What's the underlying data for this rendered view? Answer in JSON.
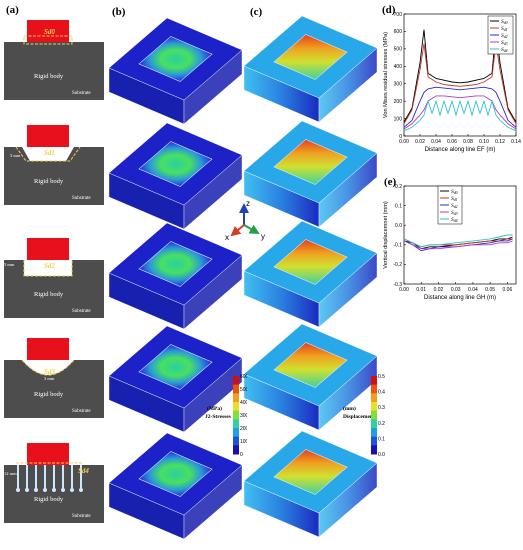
{
  "figure": {
    "panel_labels": {
      "a": "(a)",
      "b": "(b)",
      "c": "(c)",
      "d": "(d)",
      "e": "(e)"
    },
    "schematic": {
      "rigid_body": "Rigid body",
      "substrate": "Substrate",
      "bond_labels": [
        "Sd0",
        "Sd1",
        "Sd2",
        "Sd3",
        "Sd4"
      ],
      "dims": [
        "3 mm",
        "3 mm",
        "3 mm",
        "12 mm"
      ]
    },
    "colorbar_stress": {
      "unit": "(MPa)",
      "name": "J2-Stresses",
      "ticks": [
        "600",
        "500",
        "400",
        "300",
        "200",
        "100",
        "0"
      ]
    },
    "colorbar_disp": {
      "unit": "(mm)",
      "name": "Displacement",
      "ticks": [
        "0.5",
        "0.4",
        "0.3",
        "0.2",
        "0.1",
        "0.0"
      ]
    },
    "axes_triad": {
      "x": "x",
      "y": "y",
      "z": "z"
    },
    "colors": {
      "solid_red": "#e8101a",
      "steel": "#4d4d4d",
      "bond_line": "#f0d050",
      "fe_blue": "#1a1fbf",
      "Sd0": "#000000",
      "Sd1": "#c0392b",
      "Sd2": "#2929c8",
      "Sd3": "#b637c7",
      "Sd4": "#2ec4c4"
    }
  },
  "chart_data": [
    {
      "type": "line",
      "xlabel": "Distance along line EF (m)",
      "ylabel": "Von Mises residual stresses (MPa)",
      "xlim": [
        0.0,
        0.14
      ],
      "ylim": [
        0,
        700
      ],
      "xticks": [
        "0.00",
        "0.02",
        "0.04",
        "0.06",
        "0.08",
        "0.10",
        "0.12",
        "0.14"
      ],
      "yticks": [
        "0",
        "100",
        "200",
        "300",
        "400",
        "500",
        "600",
        "700"
      ],
      "legend_position": "top-right",
      "series": [
        {
          "name": "Sd0",
          "x": [
            0.0,
            0.01,
            0.02,
            0.025,
            0.03,
            0.04,
            0.05,
            0.06,
            0.07,
            0.08,
            0.09,
            0.1,
            0.11,
            0.115,
            0.12,
            0.13,
            0.14
          ],
          "values": [
            80,
            160,
            420,
            610,
            360,
            330,
            320,
            310,
            305,
            310,
            320,
            330,
            360,
            610,
            420,
            160,
            80
          ]
        },
        {
          "name": "Sd1",
          "x": [
            0.0,
            0.01,
            0.02,
            0.025,
            0.03,
            0.04,
            0.05,
            0.06,
            0.07,
            0.08,
            0.09,
            0.1,
            0.11,
            0.115,
            0.12,
            0.13,
            0.14
          ],
          "values": [
            70,
            150,
            380,
            530,
            340,
            310,
            295,
            290,
            285,
            290,
            295,
            310,
            340,
            530,
            380,
            150,
            70
          ]
        },
        {
          "name": "Sd2",
          "x": [
            0.0,
            0.01,
            0.02,
            0.025,
            0.03,
            0.04,
            0.05,
            0.06,
            0.07,
            0.08,
            0.09,
            0.1,
            0.11,
            0.115,
            0.12,
            0.13,
            0.14
          ],
          "values": [
            50,
            90,
            200,
            250,
            270,
            280,
            275,
            270,
            265,
            270,
            275,
            280,
            270,
            250,
            200,
            90,
            50
          ]
        },
        {
          "name": "Sd3",
          "x": [
            0.0,
            0.01,
            0.02,
            0.025,
            0.03,
            0.04,
            0.05,
            0.06,
            0.07,
            0.08,
            0.09,
            0.1,
            0.11,
            0.115,
            0.12,
            0.13,
            0.14
          ],
          "values": [
            40,
            70,
            120,
            150,
            200,
            230,
            230,
            225,
            220,
            225,
            230,
            230,
            200,
            150,
            120,
            70,
            40
          ]
        },
        {
          "name": "Sd4",
          "x": [
            0.0,
            0.01,
            0.02,
            0.025,
            0.03,
            0.035,
            0.04,
            0.045,
            0.05,
            0.055,
            0.06,
            0.065,
            0.07,
            0.075,
            0.08,
            0.085,
            0.09,
            0.095,
            0.1,
            0.105,
            0.11,
            0.115,
            0.12,
            0.13,
            0.14
          ],
          "values": [
            30,
            50,
            90,
            120,
            200,
            130,
            200,
            120,
            200,
            130,
            200,
            120,
            200,
            130,
            200,
            120,
            200,
            130,
            200,
            120,
            200,
            120,
            90,
            50,
            30
          ]
        }
      ]
    },
    {
      "type": "line",
      "xlabel": "Distance along line GH (m)",
      "ylabel": "Vertical displacemnet (mm)",
      "xlim": [
        0.0,
        0.065
      ],
      "ylim": [
        -0.3,
        0.2
      ],
      "xticks": [
        "0.00",
        "0.01",
        "0.02",
        "0.03",
        "0.04",
        "0.05",
        "0.06"
      ],
      "yticks": [
        "0.2",
        "0.1",
        "0.0",
        "-0.1",
        "-0.2",
        "-0.3"
      ],
      "legend_position": "center-left",
      "series": [
        {
          "name": "Sd0",
          "x": [
            0.0,
            0.005,
            0.01,
            0.015,
            0.02,
            0.03,
            0.04,
            0.05,
            0.055,
            0.06,
            0.063
          ],
          "values": [
            -0.08,
            -0.09,
            -0.12,
            -0.11,
            -0.11,
            -0.1,
            -0.09,
            -0.08,
            -0.07,
            -0.07,
            -0.06
          ]
        },
        {
          "name": "Sd1",
          "x": [
            0.0,
            0.005,
            0.01,
            0.015,
            0.02,
            0.03,
            0.04,
            0.05,
            0.055,
            0.06,
            0.063
          ],
          "values": [
            -0.07,
            -0.09,
            -0.11,
            -0.1,
            -0.1,
            -0.1,
            -0.09,
            -0.08,
            -0.08,
            -0.07,
            -0.07
          ]
        },
        {
          "name": "Sd2",
          "x": [
            0.0,
            0.005,
            0.01,
            0.015,
            0.02,
            0.03,
            0.04,
            0.05,
            0.055,
            0.06,
            0.063
          ],
          "values": [
            -0.08,
            -0.1,
            -0.13,
            -0.12,
            -0.11,
            -0.11,
            -0.1,
            -0.09,
            -0.08,
            -0.08,
            -0.07
          ]
        },
        {
          "name": "Sd3",
          "x": [
            0.0,
            0.005,
            0.01,
            0.015,
            0.02,
            0.03,
            0.04,
            0.05,
            0.055,
            0.06,
            0.063
          ],
          "values": [
            -0.08,
            -0.1,
            -0.12,
            -0.12,
            -0.12,
            -0.11,
            -0.1,
            -0.1,
            -0.09,
            -0.09,
            -0.08
          ]
        },
        {
          "name": "Sd4",
          "x": [
            0.0,
            0.005,
            0.01,
            0.015,
            0.02,
            0.03,
            0.04,
            0.05,
            0.055,
            0.06,
            0.063
          ],
          "values": [
            -0.07,
            -0.09,
            -0.11,
            -0.1,
            -0.1,
            -0.09,
            -0.08,
            -0.07,
            -0.06,
            -0.05,
            -0.05
          ]
        }
      ]
    }
  ]
}
